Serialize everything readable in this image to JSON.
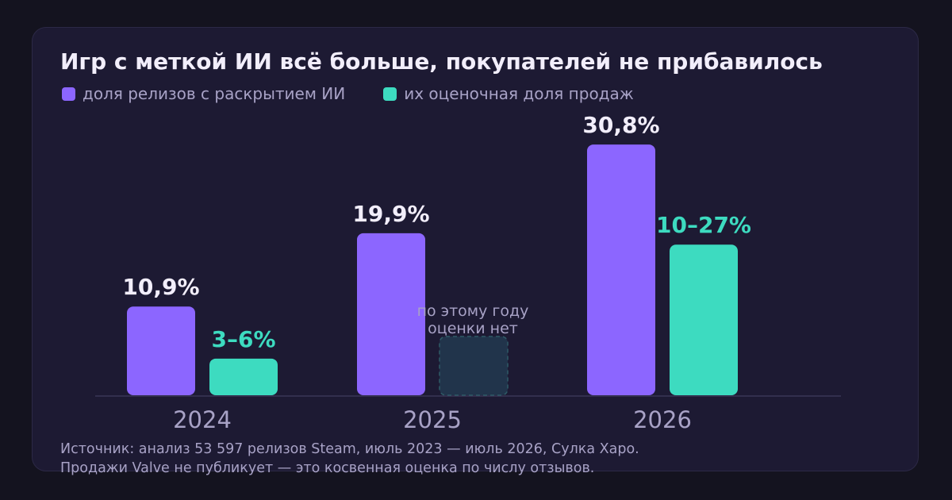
{
  "title": "Игр с меткой ИИ всё больше, покупателей не прибавилось",
  "colors": {
    "background": "#14131f",
    "card": "#1d1a33",
    "primary_series": "#8c66ff",
    "secondary_series": "#3ddbc0",
    "placeholder_fill": "#21344b",
    "placeholder_border": "#2e5a66",
    "text": "#f2eefb",
    "muted_text": "#a8a2c6"
  },
  "chart_data": {
    "type": "bar",
    "title": "Игр с меткой ИИ всё больше, покупателей не прибавилось",
    "categories": [
      "2024",
      "2025",
      "2026"
    ],
    "ylim": [
      0,
      35
    ],
    "grid": false,
    "legend_position": "top-left",
    "series": [
      {
        "name": "доля релизов с раскрытием ИИ",
        "color": "#8c66ff",
        "values": [
          10.9,
          19.9,
          30.8
        ],
        "labels": [
          "10,9%",
          "19,9%",
          "30,8%"
        ]
      },
      {
        "name": "их оценочная доля продаж",
        "color": "#3ddbc0",
        "values": [
          [
            3,
            6
          ],
          null,
          [
            10,
            27
          ]
        ],
        "labels": [
          "3–6%",
          "",
          "10–27%"
        ]
      }
    ],
    "annotations": [
      {
        "category": "2025",
        "series": "их оценочная доля продаж",
        "lines": [
          "по этому году",
          "оценки нет"
        ]
      }
    ]
  },
  "source_lines": [
    "Источник: анализ 53 597 релизов Steam, июль 2023 — июль 2026, Сулка Харо.",
    "Продажи Valve не публикует — это косвенная оценка по числу отзывов."
  ]
}
